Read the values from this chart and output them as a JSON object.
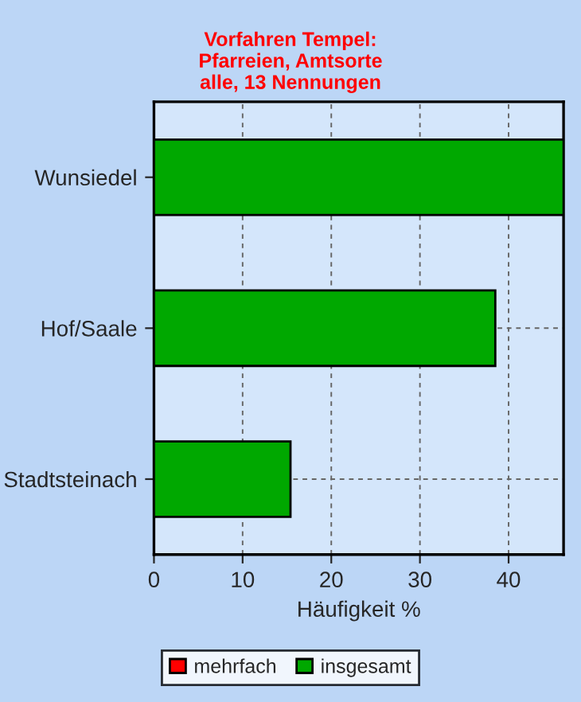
{
  "chart_data": {
    "type": "bar",
    "orientation": "horizontal",
    "title": "Vorfahren Tempel:\nPfarreien, Amtsorte\nalle, 13 Nennungen",
    "categories": [
      "Wunsiedel",
      "Hof/Saale",
      "Stadtsteinach"
    ],
    "series": [
      {
        "name": "mehrfach",
        "color": "#ff0000",
        "values": [
          0,
          0,
          0
        ]
      },
      {
        "name": "insgesamt",
        "color": "#00a800",
        "values": [
          46.2,
          38.5,
          15.4
        ]
      }
    ],
    "xlabel": "Häufigkeit %",
    "xlim": [
      0,
      46.2
    ],
    "xticks": [
      0,
      10,
      20,
      30,
      40
    ],
    "grid": true,
    "legend": "bottom"
  }
}
